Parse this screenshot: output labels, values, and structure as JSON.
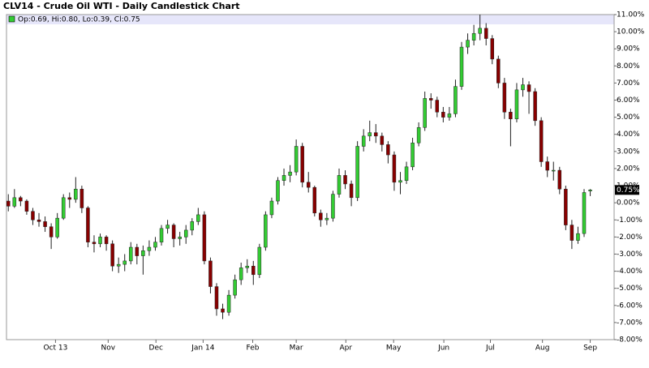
{
  "chart_data": {
    "type": "candlestick",
    "title": "CLV14 - Crude Oil WTI - Daily Candlestick Chart",
    "legend_text": "Op:0.69, Hi:0.80, Lo:0.39, Cl:0.75",
    "up_color": "#33cc33",
    "down_color": "#880000",
    "ohlc": [
      [
        0.1,
        0.5,
        -0.5,
        -0.2
      ],
      [
        -0.2,
        0.8,
        -0.3,
        0.3
      ],
      [
        0.3,
        0.4,
        -0.2,
        0.1
      ],
      [
        0.1,
        0.2,
        -0.7,
        -0.5
      ],
      [
        -0.5,
        -0.3,
        -1.3,
        -1.0
      ],
      [
        -1.0,
        -0.6,
        -1.4,
        -1.1
      ],
      [
        -1.1,
        -0.8,
        -1.7,
        -1.4
      ],
      [
        -1.4,
        -1.2,
        -2.7,
        -2.0
      ],
      [
        -2.0,
        -0.6,
        -2.1,
        -0.9
      ],
      [
        -0.9,
        0.5,
        -1.0,
        0.3
      ],
      [
        0.3,
        0.6,
        -0.3,
        0.2
      ],
      [
        0.2,
        1.5,
        0.0,
        0.8
      ],
      [
        0.8,
        1.0,
        -0.6,
        -0.3
      ],
      [
        -0.3,
        -0.2,
        -2.6,
        -2.3
      ],
      [
        -2.3,
        -1.9,
        -2.9,
        -2.4
      ],
      [
        -2.4,
        -1.8,
        -2.6,
        -2.0
      ],
      [
        -2.0,
        -1.9,
        -2.8,
        -2.4
      ],
      [
        -2.4,
        -2.2,
        -4.0,
        -3.7
      ],
      [
        -3.7,
        -3.2,
        -4.1,
        -3.6
      ],
      [
        -3.6,
        -3.0,
        -4.0,
        -3.4
      ],
      [
        -3.4,
        -2.3,
        -3.6,
        -2.6
      ],
      [
        -2.6,
        -2.4,
        -3.6,
        -3.1
      ],
      [
        -3.1,
        -2.5,
        -4.2,
        -2.8
      ],
      [
        -2.8,
        -2.2,
        -3.1,
        -2.6
      ],
      [
        -2.6,
        -2.0,
        -2.8,
        -2.3
      ],
      [
        -2.3,
        -1.3,
        -2.5,
        -1.5
      ],
      [
        -1.5,
        -1.0,
        -1.8,
        -1.3
      ],
      [
        -1.3,
        -1.2,
        -2.6,
        -2.1
      ],
      [
        -2.1,
        -1.7,
        -2.5,
        -2.0
      ],
      [
        -2.0,
        -1.3,
        -2.4,
        -1.6
      ],
      [
        -1.6,
        -0.9,
        -1.9,
        -1.1
      ],
      [
        -1.1,
        -0.3,
        -1.3,
        -0.7
      ],
      [
        -0.7,
        -0.5,
        -3.6,
        -3.4
      ],
      [
        -3.4,
        -3.2,
        -5.3,
        -4.9
      ],
      [
        -4.9,
        -4.7,
        -6.6,
        -6.2
      ],
      [
        -6.2,
        -5.9,
        -6.8,
        -6.4
      ],
      [
        -6.4,
        -5.1,
        -6.6,
        -5.4
      ],
      [
        -5.4,
        -4.2,
        -5.6,
        -4.5
      ],
      [
        -4.5,
        -3.5,
        -4.8,
        -3.8
      ],
      [
        -3.8,
        -3.3,
        -4.1,
        -3.7
      ],
      [
        -3.7,
        -3.4,
        -4.8,
        -4.2
      ],
      [
        -4.2,
        -2.4,
        -4.4,
        -2.6
      ],
      [
        -2.6,
        -0.5,
        -2.8,
        -0.7
      ],
      [
        -0.7,
        0.3,
        -0.9,
        0.1
      ],
      [
        0.1,
        1.5,
        -0.1,
        1.3
      ],
      [
        1.3,
        2.0,
        1.0,
        1.6
      ],
      [
        1.6,
        2.2,
        1.2,
        1.8
      ],
      [
        1.8,
        3.7,
        1.6,
        3.3
      ],
      [
        3.3,
        3.5,
        0.9,
        1.2
      ],
      [
        1.2,
        1.8,
        0.6,
        0.9
      ],
      [
        0.9,
        1.0,
        -0.8,
        -0.6
      ],
      [
        -0.6,
        -0.4,
        -1.4,
        -1.0
      ],
      [
        -1.0,
        -0.6,
        -1.3,
        -0.9
      ],
      [
        -0.9,
        0.7,
        -1.1,
        0.5
      ],
      [
        0.5,
        2.0,
        0.3,
        1.6
      ],
      [
        1.6,
        1.9,
        0.8,
        1.1
      ],
      [
        1.1,
        1.3,
        -0.2,
        0.3
      ],
      [
        0.3,
        3.6,
        0.1,
        3.3
      ],
      [
        3.3,
        4.3,
        3.0,
        3.9
      ],
      [
        3.9,
        4.8,
        3.6,
        4.1
      ],
      [
        4.1,
        4.6,
        3.5,
        3.9
      ],
      [
        3.9,
        4.1,
        3.0,
        3.4
      ],
      [
        3.4,
        3.6,
        2.3,
        2.8
      ],
      [
        2.8,
        3.0,
        0.7,
        1.2
      ],
      [
        1.2,
        1.8,
        0.5,
        1.3
      ],
      [
        1.3,
        2.4,
        1.1,
        2.1
      ],
      [
        2.1,
        3.8,
        1.9,
        3.5
      ],
      [
        3.5,
        4.7,
        3.3,
        4.4
      ],
      [
        4.4,
        6.5,
        4.2,
        6.1
      ],
      [
        6.1,
        6.4,
        5.5,
        6.0
      ],
      [
        6.0,
        6.2,
        5.0,
        5.3
      ],
      [
        5.3,
        5.6,
        4.7,
        5.0
      ],
      [
        5.0,
        5.6,
        4.8,
        5.2
      ],
      [
        5.2,
        7.2,
        5.0,
        6.8
      ],
      [
        6.8,
        9.4,
        6.6,
        9.1
      ],
      [
        9.1,
        9.9,
        8.7,
        9.5
      ],
      [
        9.5,
        10.4,
        9.2,
        9.9
      ],
      [
        9.9,
        11.0,
        9.5,
        10.2
      ],
      [
        10.2,
        10.5,
        9.2,
        9.6
      ],
      [
        9.6,
        9.8,
        8.1,
        8.4
      ],
      [
        8.4,
        8.6,
        6.7,
        7.0
      ],
      [
        7.0,
        7.3,
        4.9,
        5.3
      ],
      [
        5.3,
        5.5,
        3.3,
        4.9
      ],
      [
        4.9,
        7.0,
        4.7,
        6.6
      ],
      [
        6.6,
        7.3,
        6.2,
        6.9
      ],
      [
        6.9,
        7.1,
        5.2,
        6.5
      ],
      [
        6.5,
        6.7,
        4.5,
        4.8
      ],
      [
        4.8,
        5.0,
        2.1,
        2.4
      ],
      [
        2.4,
        2.7,
        1.5,
        1.9
      ],
      [
        1.9,
        2.4,
        1.3,
        1.9
      ],
      [
        1.9,
        2.1,
        0.5,
        0.8
      ],
      [
        0.8,
        1.0,
        -1.6,
        -1.3
      ],
      [
        -1.3,
        -1.0,
        -2.7,
        -2.2
      ],
      [
        -2.2,
        -1.4,
        -2.4,
        -1.8
      ],
      [
        -1.8,
        0.8,
        -2.0,
        0.6
      ],
      [
        0.69,
        0.8,
        0.39,
        0.75
      ]
    ],
    "last_price": {
      "value": 0.75,
      "label": "0.75%"
    },
    "xlim": [
      -0.3,
      98.9
    ],
    "xticks": [
      {
        "value": 7.7,
        "label": "Oct 13"
      },
      {
        "value": 16.3,
        "label": "Nov"
      },
      {
        "value": 24.1,
        "label": "Dec"
      },
      {
        "value": 31.8,
        "label": "Jan 14"
      },
      {
        "value": 39.9,
        "label": "Feb"
      },
      {
        "value": 47,
        "label": "Mar"
      },
      {
        "value": 55.1,
        "label": "Apr"
      },
      {
        "value": 62.9,
        "label": "May"
      },
      {
        "value": 71.1,
        "label": "Jun"
      },
      {
        "value": 78.7,
        "label": "Jul"
      },
      {
        "value": 87.2,
        "label": "Aug"
      },
      {
        "value": 95,
        "label": "Sep"
      }
    ],
    "ylim": [
      -8,
      11
    ],
    "yticks": [
      {
        "value": 11,
        "label": "11.00%"
      },
      {
        "value": 10,
        "label": "10.00%"
      },
      {
        "value": 9,
        "label": "9.00%"
      },
      {
        "value": 8,
        "label": "8.00%"
      },
      {
        "value": 7,
        "label": "7.00%"
      },
      {
        "value": 6,
        "label": "6.00%"
      },
      {
        "value": 5,
        "label": "5.00%"
      },
      {
        "value": 4,
        "label": "4.00%"
      },
      {
        "value": 3,
        "label": "3.00%"
      },
      {
        "value": 2,
        "label": "2.00%"
      },
      {
        "value": 1,
        "label": "1.00%"
      },
      {
        "value": 0,
        "label": "0.00%"
      },
      {
        "value": -1,
        "label": "-1.00%"
      },
      {
        "value": -2,
        "label": "-2.00%"
      },
      {
        "value": -3,
        "label": "-3.00%"
      },
      {
        "value": -4,
        "label": "-4.00%"
      },
      {
        "value": -5,
        "label": "-5.00%"
      },
      {
        "value": -6,
        "label": "-6.00%"
      },
      {
        "value": -7,
        "label": "-7.00%"
      },
      {
        "value": -8,
        "label": "-8.00%"
      }
    ]
  }
}
